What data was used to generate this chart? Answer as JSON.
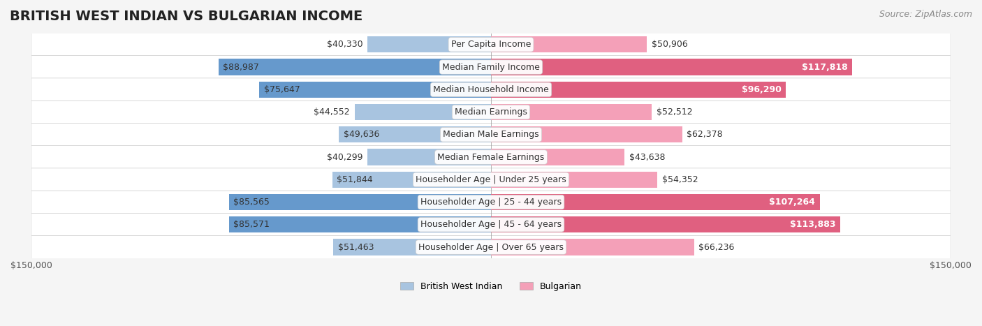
{
  "title": "BRITISH WEST INDIAN VS BULGARIAN INCOME",
  "source": "Source: ZipAtlas.com",
  "categories": [
    "Per Capita Income",
    "Median Family Income",
    "Median Household Income",
    "Median Earnings",
    "Median Male Earnings",
    "Median Female Earnings",
    "Householder Age | Under 25 years",
    "Householder Age | 25 - 44 years",
    "Householder Age | 45 - 64 years",
    "Householder Age | Over 65 years"
  ],
  "left_values": [
    40330,
    88987,
    75647,
    44552,
    49636,
    40299,
    51844,
    85565,
    85571,
    51463
  ],
  "right_values": [
    50906,
    117818,
    96290,
    52512,
    62378,
    43638,
    54352,
    107264,
    113883,
    66236
  ],
  "left_labels": [
    "$40,330",
    "$88,987",
    "$75,647",
    "$44,552",
    "$49,636",
    "$40,299",
    "$51,844",
    "$85,565",
    "$85,571",
    "$51,463"
  ],
  "right_labels": [
    "$50,906",
    "$117,818",
    "$96,290",
    "$52,512",
    "$62,378",
    "$43,638",
    "$54,352",
    "$107,264",
    "$113,883",
    "$66,236"
  ],
  "left_color_light": "#a8c4e0",
  "left_color_dark": "#6699cc",
  "right_color_light": "#f4a0b8",
  "right_color_dark": "#e06080",
  "max_value": 150000,
  "left_legend": "British West Indian",
  "right_legend": "Bulgarian",
  "background_color": "#f5f5f5",
  "row_bg_color": "#ffffff",
  "title_fontsize": 14,
  "label_fontsize": 9,
  "axis_label_fontsize": 9,
  "source_fontsize": 9
}
